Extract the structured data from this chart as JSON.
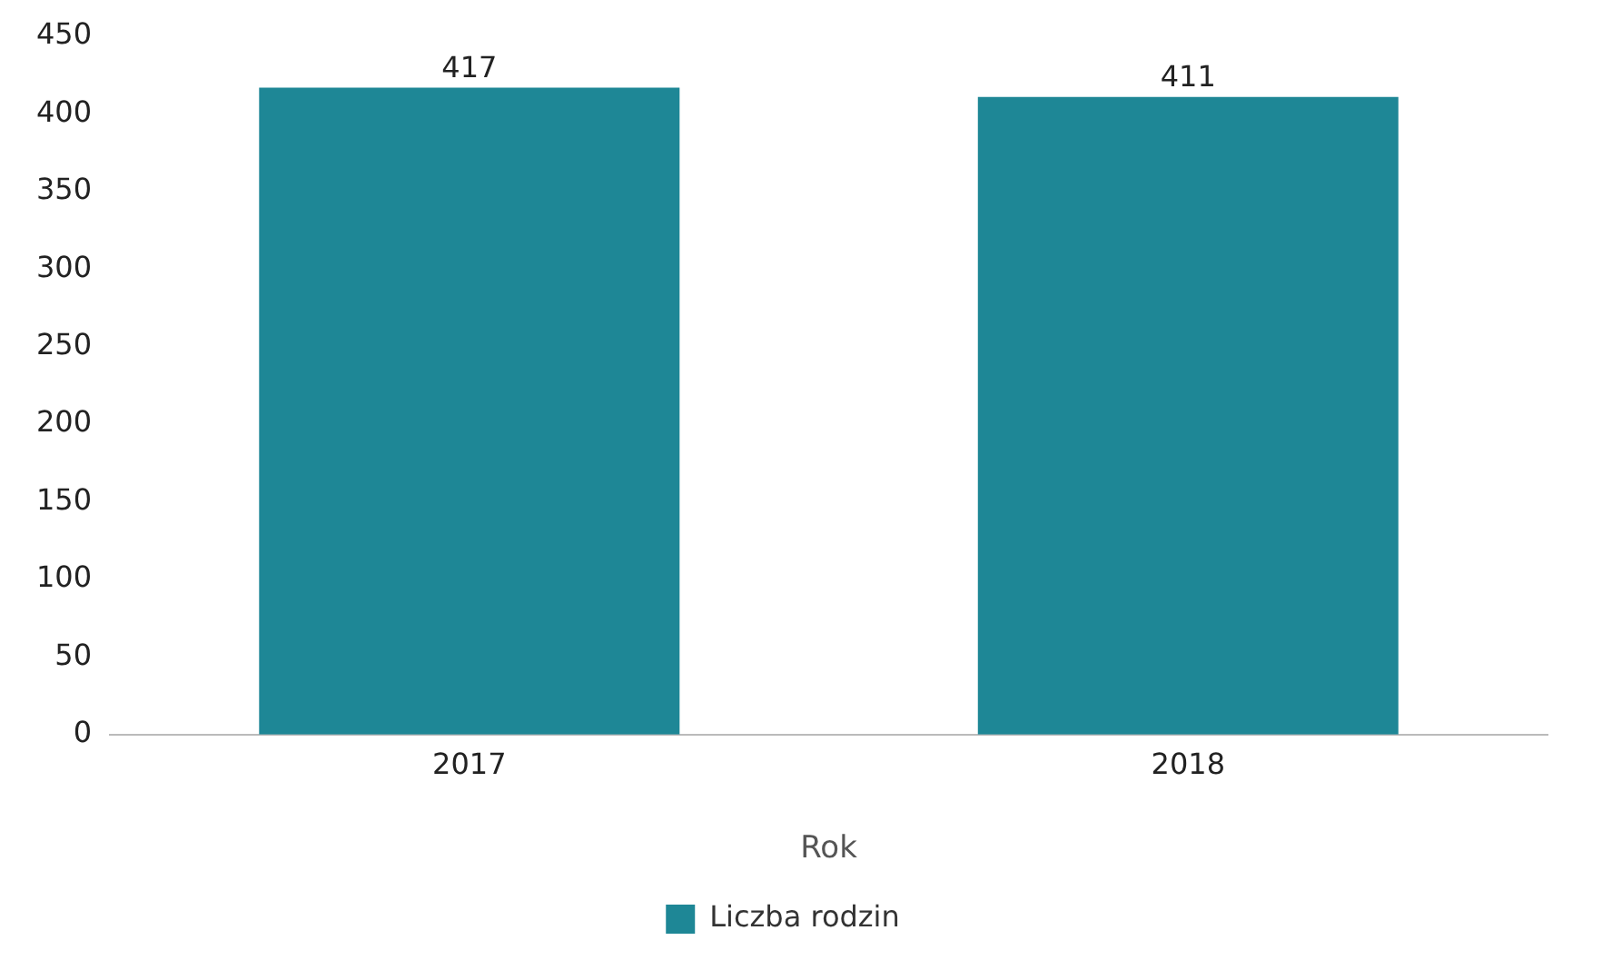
{
  "chart_data": {
    "type": "bar",
    "xlabel": "Rok",
    "categories": [
      "2017",
      "2018"
    ],
    "series": [
      {
        "name": "Liczba rodzin",
        "color": "#1e8796",
        "values": [
          417,
          411
        ]
      }
    ],
    "ylim": [
      0,
      450
    ],
    "yticks": [
      0,
      50,
      100,
      150,
      200,
      250,
      300,
      350,
      400,
      450
    ],
    "grid": false,
    "legend": "bottom",
    "data_labels": true
  }
}
